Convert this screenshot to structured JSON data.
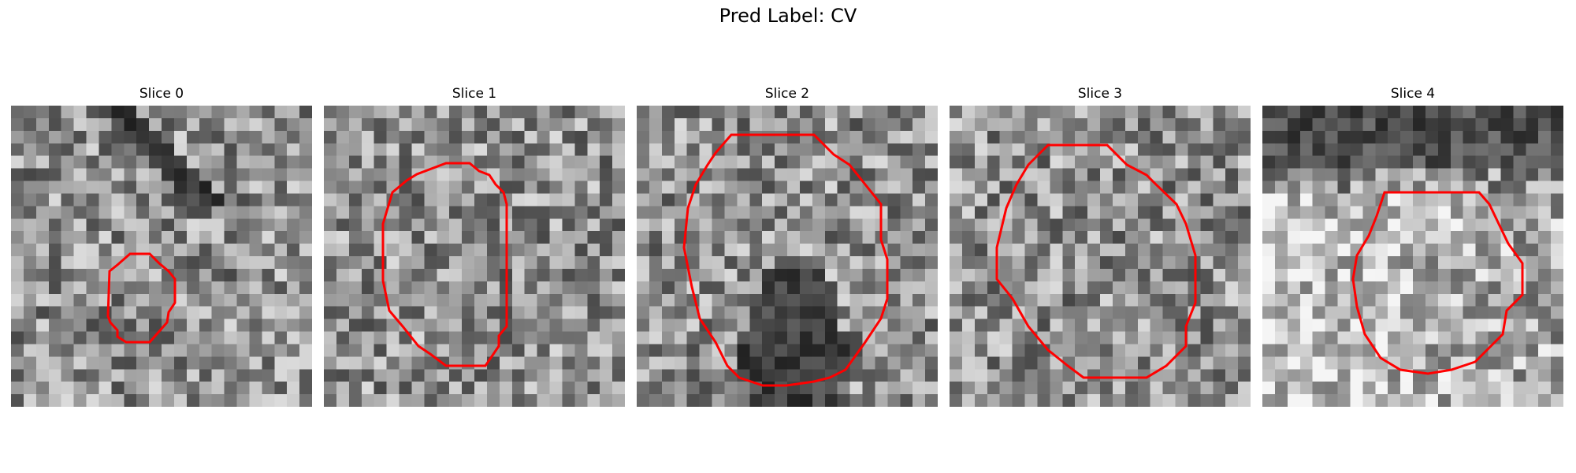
{
  "figure_title": "Pred Label: CV",
  "contour_color": "#ff0000",
  "slices": [
    {
      "title": "Slice 0",
      "tone": "mixed"
    },
    {
      "title": "Slice 1",
      "tone": "mixed"
    },
    {
      "title": "Slice 2",
      "tone": "dark-center-bottom"
    },
    {
      "title": "Slice 3",
      "tone": "mixed"
    },
    {
      "title": "Slice 4",
      "tone": "bright-lower-left"
    }
  ]
}
